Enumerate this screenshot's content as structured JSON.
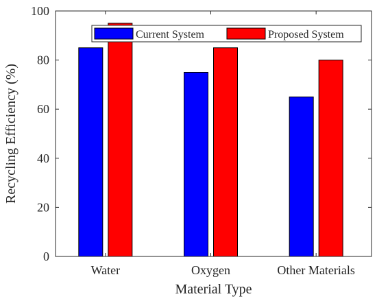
{
  "chart_data": {
    "type": "bar",
    "title": "",
    "xlabel": "Material Type",
    "ylabel": "Recycling Efficiency (%)",
    "categories": [
      "Water",
      "Oxygen",
      "Other Materials"
    ],
    "series": [
      {
        "name": "Current System",
        "values": [
          85,
          75,
          65
        ],
        "color": "#0000ff"
      },
      {
        "name": "Proposed System",
        "values": [
          95,
          85,
          80
        ],
        "color": "#ff0000"
      }
    ],
    "ylim": [
      0,
      100
    ],
    "yticks": [
      0,
      20,
      40,
      60,
      80,
      100
    ],
    "grid": false,
    "legend_position": "top-right"
  }
}
